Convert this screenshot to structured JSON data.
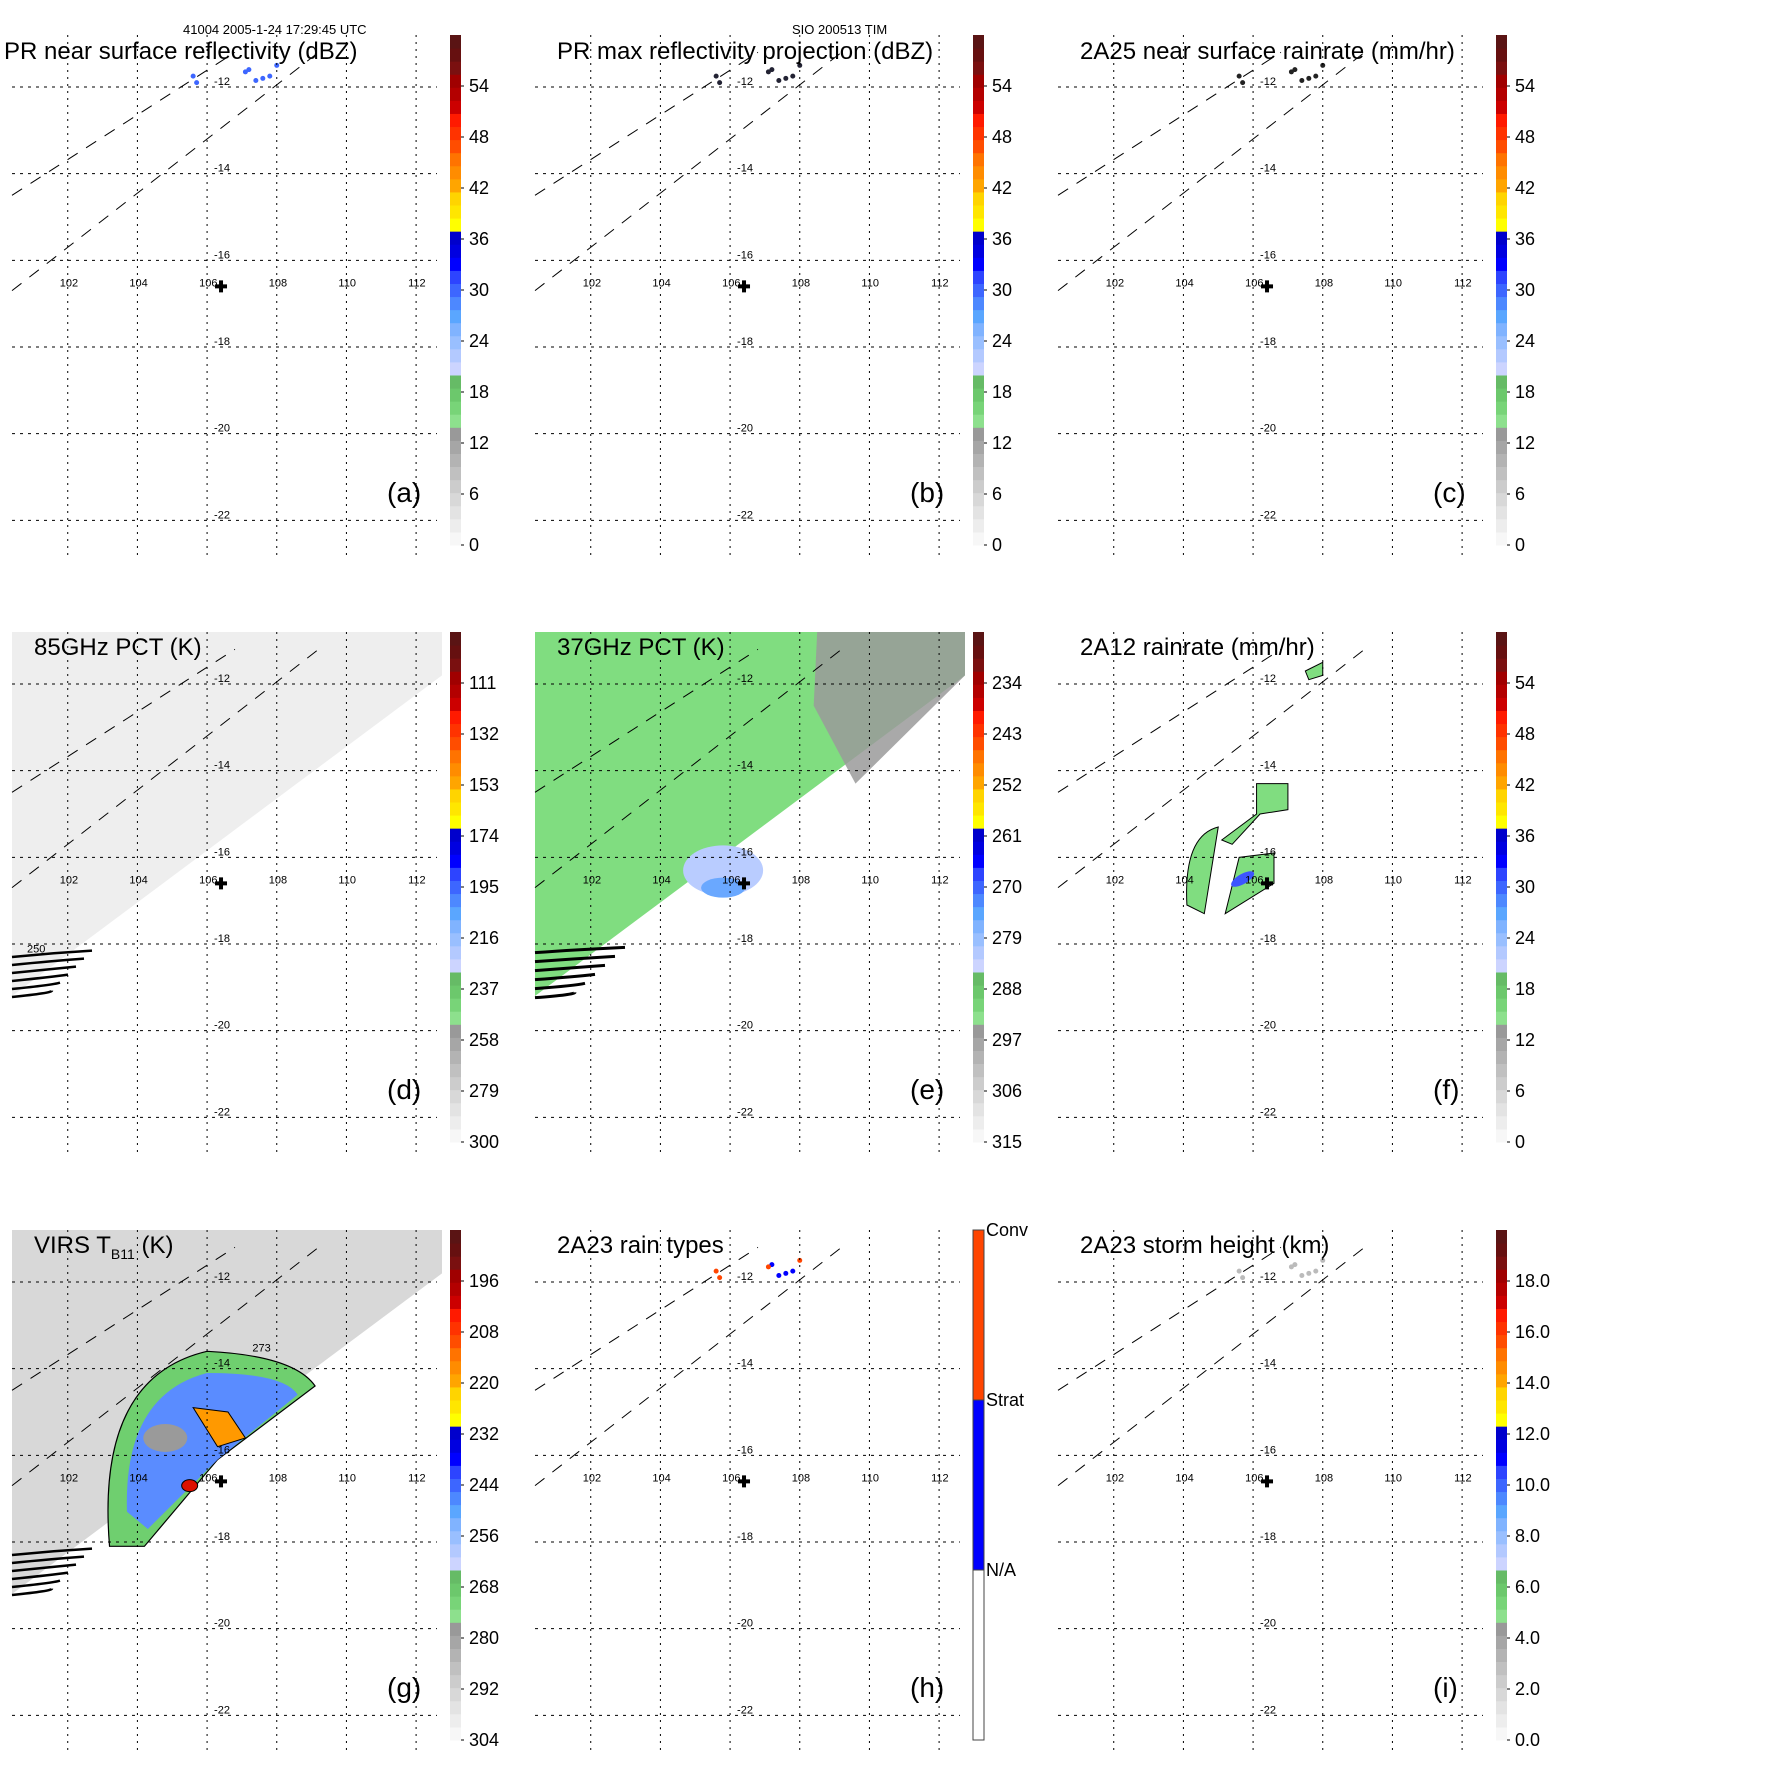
{
  "header": {
    "left": "41004 2005-1-24 17:29:45 UTC",
    "center": "SIO 200513 TIM"
  },
  "map_axes": {
    "lon_ticks": [
      "102",
      "104",
      "106",
      "108",
      "110",
      "112"
    ],
    "lat_ticks": [
      "-12",
      "-14",
      "-16",
      "-18",
      "-20",
      "-22"
    ],
    "lon_range": [
      100.4,
      112.6
    ],
    "lat_range": [
      -10.8,
      -22.8
    ],
    "storm_center": {
      "lon": 106.4,
      "lat": -16.6,
      "marker": "plus-icon"
    }
  },
  "colormap_standard": [
    "#f7f7f7",
    "#ededed",
    "#e3e3e3",
    "#d8d8d8",
    "#cccccc",
    "#c0c0c0",
    "#b3b3b3",
    "#a6a6a6",
    "#999999",
    "#8de08d",
    "#78d478",
    "#6cc86c",
    "#66bb66",
    "#ccd4ff",
    "#b3c9ff",
    "#99bfff",
    "#80b3ff",
    "#5aa6ff",
    "#4d88ff",
    "#3d66ff",
    "#2d44ff",
    "#0000ff",
    "#0000e0",
    "#0000cc",
    "#ffff00",
    "#ffe600",
    "#ffd400",
    "#ffa500",
    "#ff8c00",
    "#ff7300",
    "#ff4d00",
    "#ff3300",
    "#ff1a00",
    "#cc0000",
    "#b30000",
    "#a00000",
    "#7a1010",
    "#661010",
    "#5a1414"
  ],
  "chart_data": [
    {
      "id": "a",
      "type": "heatmap",
      "panel_label": "(a)",
      "title": "PR near surface reflectivity (dBZ)",
      "colorbar": {
        "ticks": [
          "0",
          "6",
          "12",
          "18",
          "24",
          "30",
          "36",
          "42",
          "48",
          "54"
        ],
        "range": [
          0,
          60
        ]
      },
      "swath": false,
      "features": "sparse blue/light-blue echoes near lon 105.5-108, lat -11.5 to -12"
    },
    {
      "id": "b",
      "type": "heatmap",
      "panel_label": "(b)",
      "title": "PR max reflectivity projection (dBZ)",
      "colorbar": {
        "ticks": [
          "0",
          "6",
          "12",
          "18",
          "24",
          "30",
          "36",
          "42",
          "48",
          "54"
        ],
        "range": [
          0,
          60
        ]
      },
      "swath": false,
      "features": "small contoured cells near lon 105.5-108, lat -11.5 to -12"
    },
    {
      "id": "c",
      "type": "heatmap",
      "panel_label": "(c)",
      "title": "2A25 near surface rainrate (mm/hr)",
      "colorbar": {
        "ticks": [
          "0",
          "6",
          "12",
          "18",
          "24",
          "30",
          "36",
          "42",
          "48",
          "54"
        ],
        "range": [
          0,
          60
        ]
      },
      "swath": false,
      "features": "small contoured cells near lon 105.5-108, lat -11.5 to -12"
    },
    {
      "id": "d",
      "type": "heatmap",
      "panel_label": "(d)",
      "title": "85GHz PCT (K)",
      "colorbar": {
        "ticks": [
          "300",
          "279",
          "258",
          "237",
          "216",
          "195",
          "174",
          "153",
          "132",
          "111"
        ],
        "range": [
          300,
          90
        ]
      },
      "swath": true,
      "swath_fill": "#eeeeee",
      "contour_label": "250"
    },
    {
      "id": "e",
      "type": "heatmap",
      "panel_label": "(e)",
      "title": "37GHz PCT (K)",
      "colorbar": {
        "ticks": [
          "315",
          "306",
          "297",
          "288",
          "279",
          "270",
          "261",
          "252",
          "243",
          "234"
        ],
        "range": [
          315,
          225
        ]
      },
      "swath": true,
      "swath_fill": "#80dd80"
    },
    {
      "id": "f",
      "type": "heatmap",
      "panel_label": "(f)",
      "title": "2A12 rainrate (mm/hr)",
      "colorbar": {
        "ticks": [
          "0",
          "6",
          "12",
          "18",
          "24",
          "30",
          "36",
          "42",
          "48",
          "54"
        ],
        "range": [
          0,
          60
        ]
      },
      "swath": false,
      "features": "green rain regions with blue core near lon 104-107, lat -14 to -17.5"
    },
    {
      "id": "g",
      "type": "heatmap",
      "panel_label": "(g)",
      "title": "VIRS T",
      "title_sub": "B11",
      "title_suffix": " (K)",
      "colorbar": {
        "ticks": [
          "304",
          "292",
          "280",
          "268",
          "256",
          "244",
          "232",
          "220",
          "208",
          "196"
        ],
        "range": [
          304,
          184
        ]
      },
      "swath": true,
      "swath_fill": "#d8d8d8",
      "contour_label": "273"
    },
    {
      "id": "h",
      "type": "heatmap",
      "panel_label": "(h)",
      "title": "2A23 rain types",
      "colorbar": {
        "categorical": true,
        "labels": [
          "N/A",
          "Strat",
          "Conv"
        ],
        "colors": [
          "#ffffff",
          "#0000ff",
          "#ff4500"
        ]
      },
      "swath": false
    },
    {
      "id": "i",
      "type": "heatmap",
      "panel_label": "(i)",
      "title": "2A23 storm height (km)",
      "colorbar": {
        "ticks": [
          "0.0",
          "2.0",
          "4.0",
          "6.0",
          "8.0",
          "10.0",
          "12.0",
          "14.0",
          "16.0",
          "18.0"
        ],
        "range": [
          0,
          20
        ]
      },
      "swath": false
    }
  ]
}
